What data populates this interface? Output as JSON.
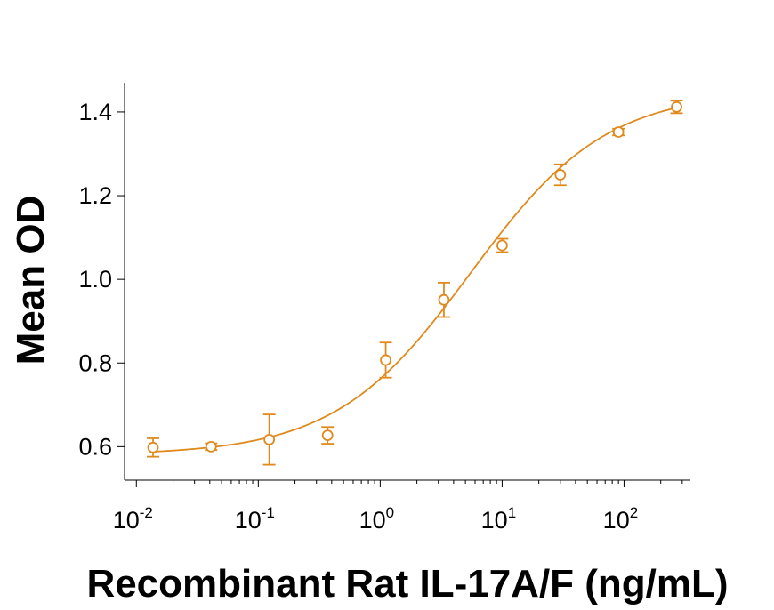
{
  "chart_data": {
    "type": "scatter",
    "title": "",
    "xlabel": "Recombinant Rat IL-17A/F (ng/mL)",
    "ylabel": "Mean OD",
    "x_scale": "log",
    "xlim": [
      0.008,
      350
    ],
    "ylim": [
      0.52,
      1.47
    ],
    "x_ticks": [
      {
        "value": 0.01,
        "base": "10",
        "exp": "-2"
      },
      {
        "value": 0.1,
        "base": "10",
        "exp": "-1"
      },
      {
        "value": 1,
        "base": "10",
        "exp": "0"
      },
      {
        "value": 10,
        "base": "10",
        "exp": "1"
      },
      {
        "value": 100,
        "base": "10",
        "exp": "2"
      }
    ],
    "y_ticks": [
      {
        "value": 0.6,
        "label": "0.6"
      },
      {
        "value": 0.8,
        "label": "0.8"
      },
      {
        "value": 1.0,
        "label": "1.0"
      },
      {
        "value": 1.2,
        "label": "1.2"
      },
      {
        "value": 1.4,
        "label": "1.4"
      }
    ],
    "grid": false,
    "color": "#E08A1E",
    "series": [
      {
        "points": [
          {
            "x": 0.0137,
            "y": 0.598,
            "err": 0.022
          },
          {
            "x": 0.041,
            "y": 0.6,
            "err": 0.008
          },
          {
            "x": 0.123,
            "y": 0.617,
            "err": 0.06
          },
          {
            "x": 0.37,
            "y": 0.627,
            "err": 0.02
          },
          {
            "x": 1.11,
            "y": 0.807,
            "err": 0.042
          },
          {
            "x": 3.33,
            "y": 0.951,
            "err": 0.041
          },
          {
            "x": 10.0,
            "y": 1.081,
            "err": 0.016
          },
          {
            "x": 30.0,
            "y": 1.25,
            "err": 0.025
          },
          {
            "x": 90.0,
            "y": 1.352,
            "err": 0.008
          },
          {
            "x": 270.0,
            "y": 1.412,
            "err": 0.015
          }
        ],
        "fit": {
          "bottom": 0.58,
          "top": 1.45,
          "ec50": 5.5,
          "hill": 0.78
        }
      }
    ]
  }
}
